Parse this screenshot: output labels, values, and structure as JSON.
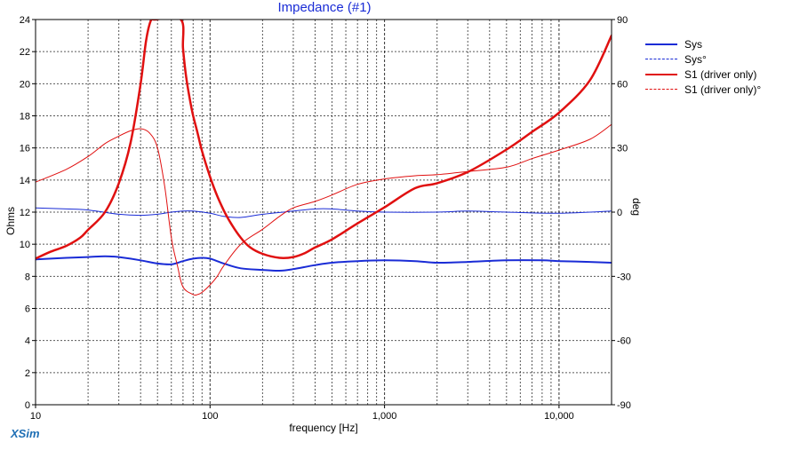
{
  "app_name": "XSim",
  "chart_data": {
    "type": "line",
    "title": "Impedance (#1)",
    "xlabel": "frequency [Hz]",
    "ylabel": "Ohms",
    "y2label": "deg",
    "xscale": "log",
    "xlim": [
      10,
      20000
    ],
    "ylim": [
      0,
      24
    ],
    "y2lim": [
      -90,
      90
    ],
    "x_ticks": [
      10,
      100,
      1000,
      10000
    ],
    "x_tick_labels": [
      "10",
      "100",
      "1,000",
      "10,000"
    ],
    "y_ticks": [
      0,
      2,
      4,
      6,
      8,
      10,
      12,
      14,
      16,
      18,
      20,
      22,
      24
    ],
    "y2_ticks": [
      -90,
      -60,
      -30,
      0,
      30,
      60,
      90
    ],
    "grid": true,
    "legend_position": "right",
    "series": [
      {
        "name": "Sys",
        "axis": "left",
        "color": "#1a2cd6",
        "style": "solid",
        "width": 2,
        "x": [
          10,
          15,
          20,
          25,
          30,
          40,
          50,
          60,
          70,
          80,
          90,
          100,
          120,
          150,
          200,
          250,
          300,
          400,
          500,
          700,
          1000,
          1500,
          2000,
          3000,
          5000,
          8000,
          10000,
          15000,
          20000
        ],
        "y": [
          9.05,
          9.15,
          9.2,
          9.25,
          9.2,
          9.0,
          8.8,
          8.75,
          8.95,
          9.1,
          9.15,
          9.1,
          8.8,
          8.5,
          8.4,
          8.35,
          8.45,
          8.7,
          8.85,
          8.95,
          9.0,
          8.95,
          8.85,
          8.9,
          9.0,
          9.0,
          8.95,
          8.9,
          8.85
        ]
      },
      {
        "name": "Sys°",
        "axis": "right",
        "color": "#1a2cd6",
        "style": "dashed",
        "width": 1,
        "x": [
          10,
          15,
          20,
          30,
          40,
          50,
          60,
          70,
          80,
          100,
          120,
          150,
          200,
          300,
          400,
          500,
          700,
          1000,
          2000,
          3000,
          5000,
          10000,
          20000
        ],
        "y": [
          2.0,
          1.5,
          1.0,
          -1.0,
          -1.5,
          -1.0,
          0.0,
          0.5,
          0.5,
          -0.5,
          -2.0,
          -2.5,
          -1.0,
          0.5,
          1.5,
          1.5,
          0.5,
          0.0,
          0.0,
          0.5,
          0.0,
          -0.5,
          0.5
        ]
      },
      {
        "name": "S1 (driver only)",
        "axis": "left",
        "color": "#e01010",
        "style": "solid",
        "width": 2.5,
        "x": [
          10,
          12,
          15,
          18,
          20,
          25,
          30,
          35,
          40,
          43,
          46,
          48,
          68,
          70,
          73,
          77,
          80,
          85,
          90,
          100,
          110,
          120,
          130,
          150,
          170,
          200,
          250,
          300,
          350,
          400,
          500,
          700,
          1000,
          1500,
          2000,
          3000,
          5000,
          7000,
          10000,
          15000,
          20000
        ],
        "y": [
          9.1,
          9.5,
          9.9,
          10.4,
          10.9,
          12.0,
          13.8,
          16.3,
          20.0,
          22.7,
          24.0,
          24.0,
          24.0,
          22.2,
          20.4,
          18.9,
          18.0,
          16.9,
          15.8,
          14.2,
          13.0,
          12.1,
          11.4,
          10.4,
          9.8,
          9.4,
          9.15,
          9.2,
          9.45,
          9.8,
          10.3,
          11.3,
          12.3,
          13.5,
          13.8,
          14.5,
          15.9,
          17.0,
          18.2,
          20.2,
          23.0
        ]
      },
      {
        "name": "S1 (driver only)°",
        "axis": "right",
        "color": "#e01010",
        "style": "dashed",
        "width": 1,
        "x": [
          10,
          15,
          20,
          25,
          30,
          35,
          40,
          45,
          50,
          55,
          60,
          65,
          70,
          80,
          85,
          90,
          100,
          110,
          120,
          150,
          200,
          250,
          300,
          400,
          500,
          700,
          1000,
          1500,
          2000,
          3000,
          5000,
          7000,
          10000,
          15000,
          20000
        ],
        "y": [
          14.0,
          20.0,
          26.0,
          32.0,
          35.5,
          38.0,
          39.0,
          37.0,
          30.0,
          12.0,
          -12.0,
          -25.0,
          -35.0,
          -38.5,
          -38.5,
          -37.5,
          -34.0,
          -30.0,
          -25.0,
          -15.0,
          -8.0,
          -2.0,
          2.0,
          5.0,
          8.0,
          13.0,
          15.5,
          17.0,
          17.5,
          19.0,
          21.0,
          25.0,
          29.0,
          34.0,
          41.0
        ]
      }
    ]
  }
}
